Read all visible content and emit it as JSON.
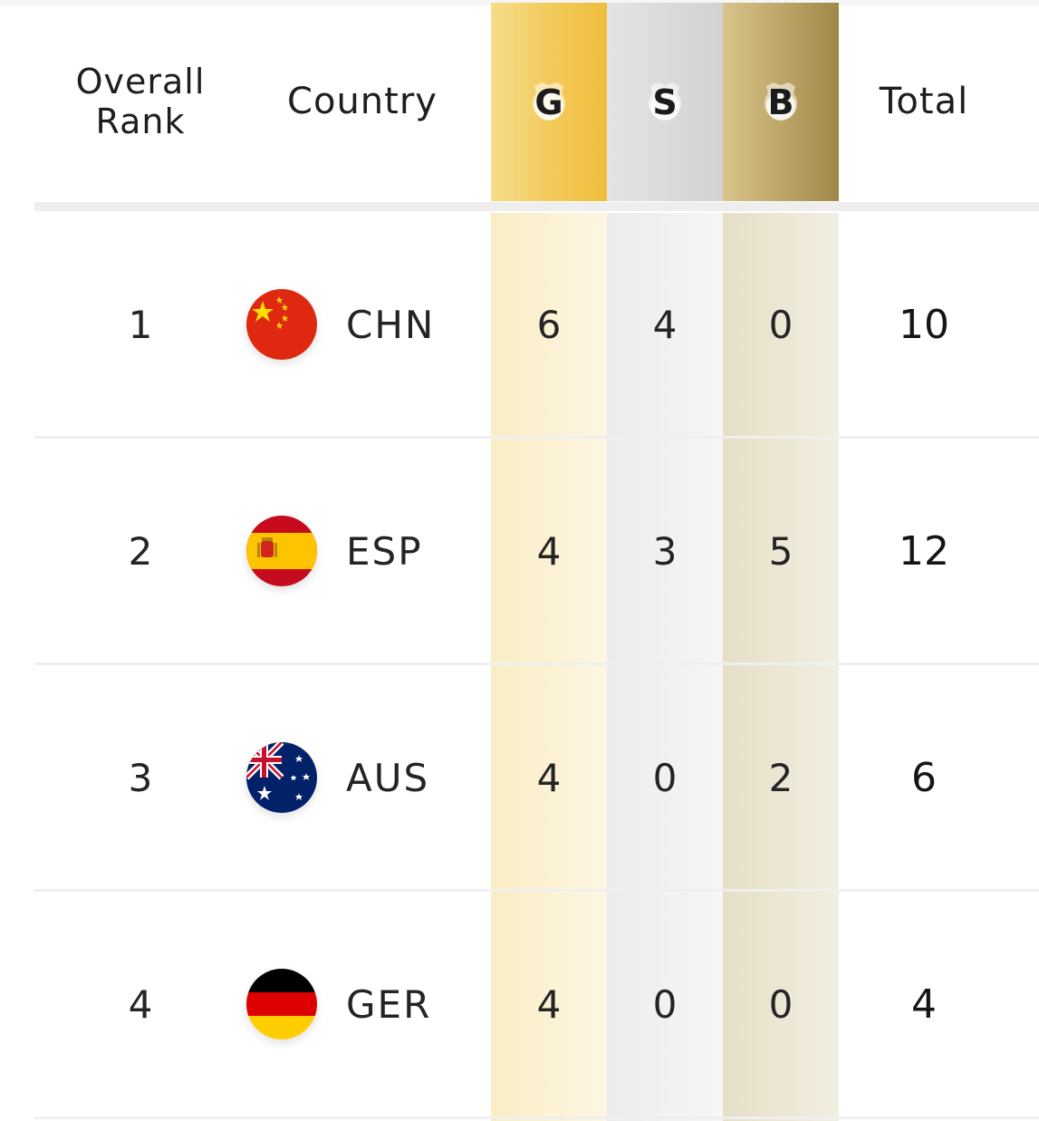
{
  "header": {
    "rank_line1": "Overall",
    "rank_line2": "Rank",
    "country": "Country",
    "gold": "G",
    "silver": "S",
    "bronze": "B",
    "total": "Total"
  },
  "colors": {
    "gold": "#f2c958",
    "silver": "#d2d2d2",
    "bronze": "#bba366"
  },
  "rows": [
    {
      "rank": "1",
      "code": "CHN",
      "flag": "china-flag-icon",
      "gold": "6",
      "silver": "4",
      "bronze": "0",
      "total": "10"
    },
    {
      "rank": "2",
      "code": "ESP",
      "flag": "spain-flag-icon",
      "gold": "4",
      "silver": "3",
      "bronze": "5",
      "total": "12"
    },
    {
      "rank": "3",
      "code": "AUS",
      "flag": "australia-flag-icon",
      "gold": "4",
      "silver": "0",
      "bronze": "2",
      "total": "6"
    },
    {
      "rank": "4",
      "code": "GER",
      "flag": "germany-flag-icon",
      "gold": "4",
      "silver": "0",
      "bronze": "0",
      "total": "4"
    }
  ]
}
